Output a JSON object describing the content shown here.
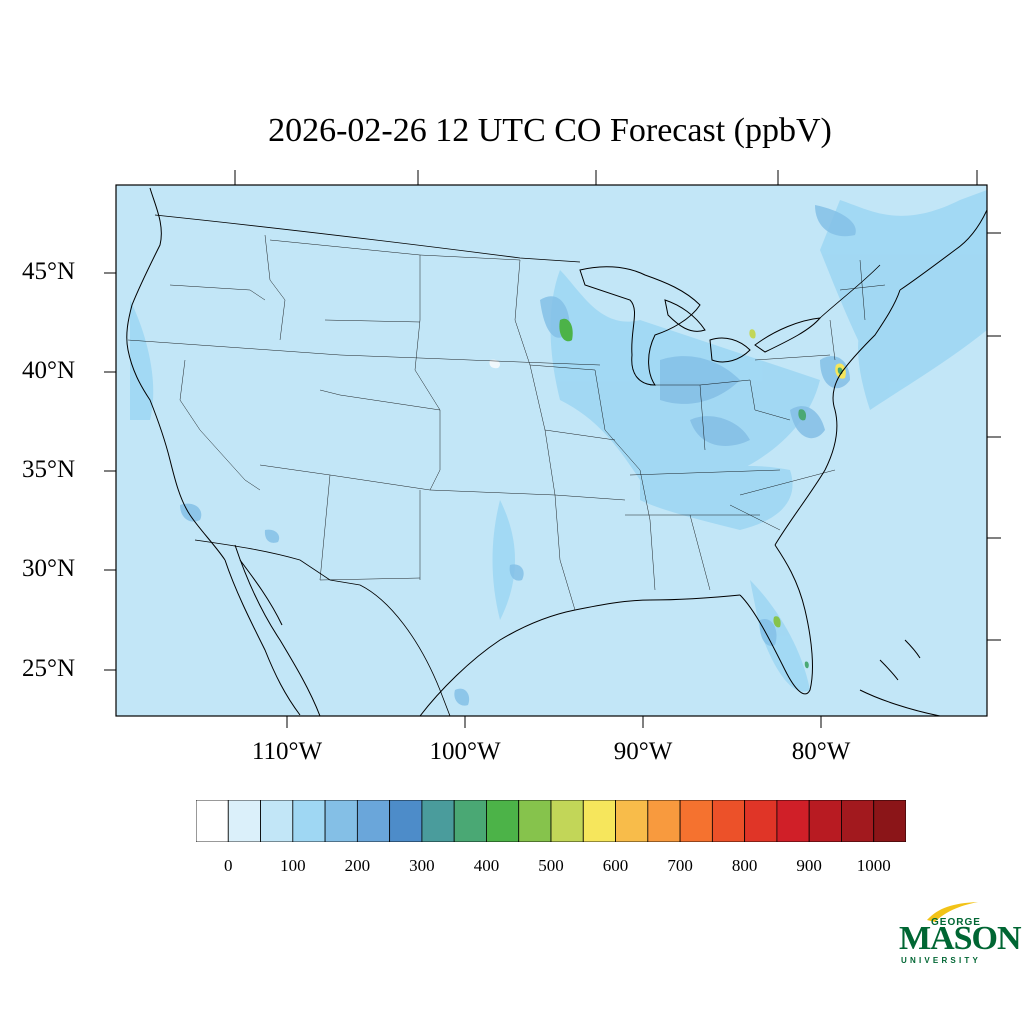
{
  "title": "2026-02-26 12 UTC CO Forecast (ppbV)",
  "map": {
    "background_color": "#c2e6f7",
    "border_color": "#000000",
    "lat_labels": [
      "45°N",
      "40°N",
      "35°N",
      "30°N",
      "25°N"
    ],
    "lon_labels": [
      "110°W",
      "100°W",
      "90°W",
      "80°W"
    ]
  },
  "colorbar": {
    "colors": [
      "#ffffff",
      "#dbf0fa",
      "#c2e6f7",
      "#9fd7f3",
      "#84bfe6",
      "#6aa6da",
      "#4d8cc9",
      "#4a9c9c",
      "#4aa874",
      "#4cb348",
      "#86c34c",
      "#c2d658",
      "#f6e65c",
      "#f8bc4a",
      "#f89a3e",
      "#f5722f",
      "#ec5129",
      "#e03527",
      "#d01f28",
      "#b81b22",
      "#a2191e",
      "#8b1518"
    ],
    "labels": [
      "0",
      "100",
      "200",
      "300",
      "400",
      "500",
      "600",
      "700",
      "800",
      "900",
      "1000"
    ]
  },
  "logo": {
    "line1": "GEORGE",
    "line2": "MASON",
    "line3": "UNIVERSITY",
    "color": "#006633",
    "swoosh_color": "#f2c318"
  }
}
